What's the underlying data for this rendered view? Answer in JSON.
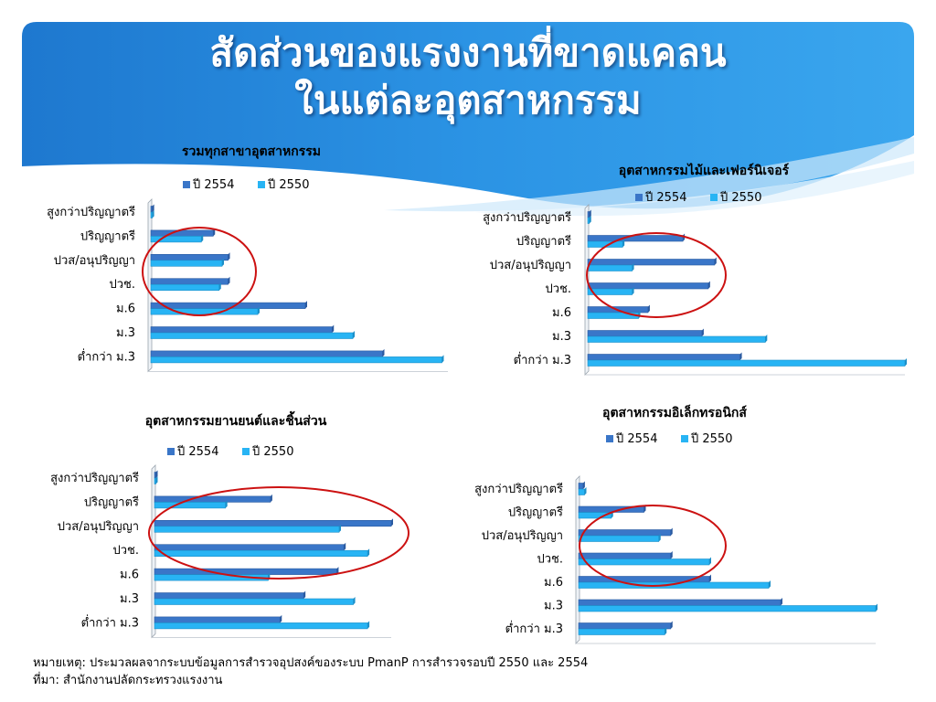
{
  "slide": {
    "title_line1": "สัดส่วนของแรงงานที่ขาดแคลน",
    "title_line2": "ในแต่ละอุตสาหกรรม",
    "note": "หมายเหตุ: ประมวลผลจากระบบข้อมูลการสำรวจอุปสงค์ของระบบ PmanP การสำรวจรอบปี 2550 และ 2554",
    "source": "ที่มา: สำนักงานปลัดกระทรวงแรงงาน"
  },
  "colors": {
    "series_2554": "#3a76c8",
    "series_2550": "#28b4f4",
    "highlight_ellipse": "#cc1111",
    "header_blue": "#2b8fe0"
  },
  "chart_data": [
    {
      "type": "bar",
      "orientation": "horizontal",
      "title": "รวมทุกสาขาอุตสาหกรรม",
      "categories": [
        "สูงกว่าปริญญาตรี",
        "ปริญญาตรี",
        "ปวส/อนุปริญญา",
        "ปวช.",
        "ม.6",
        "ม.3",
        "ต่ำกว่า ม.3"
      ],
      "series": [
        {
          "name": "ปี 2554",
          "values": [
            0.5,
            21,
            26,
            26,
            52,
            61,
            78
          ]
        },
        {
          "name": "ปี 2550",
          "values": [
            0.5,
            17,
            24,
            23,
            36,
            68,
            98
          ]
        }
      ],
      "legend": "top",
      "grid": false
    },
    {
      "type": "bar",
      "orientation": "horizontal",
      "title": "อุตสาหกรรมไม้และเฟอร์นิเจอร์",
      "categories": [
        "สูงกว่าปริญญาตรี",
        "ปริญญาตรี",
        "ปวส/อนุปริญญา",
        "ปวช.",
        "ม.6",
        "ม.3",
        "ต่ำกว่า ม.3"
      ],
      "series": [
        {
          "name": "ปี 2554",
          "values": [
            0.5,
            30,
            40,
            38,
            19,
            36,
            48
          ]
        },
        {
          "name": "ปี 2550",
          "values": [
            0.5,
            11,
            14,
            14,
            16,
            56,
            100
          ]
        }
      ],
      "legend": "top",
      "grid": false
    },
    {
      "type": "bar",
      "orientation": "horizontal",
      "title": "อุตสาหกรรมยานยนต์และชิ้นส่วน",
      "categories": [
        "สูงกว่าปริญญาตรี",
        "ปริญญาตรี",
        "ปวส/อนุปริญญา",
        "ปวช.",
        "ม.6",
        "ม.3",
        "ต่ำกว่า ม.3"
      ],
      "series": [
        {
          "name": "ปี 2554",
          "values": [
            0.5,
            49,
            100,
            80,
            77,
            63,
            53
          ]
        },
        {
          "name": "ปี 2550",
          "values": [
            0.5,
            30,
            78,
            90,
            48,
            84,
            90
          ]
        }
      ],
      "legend": "top",
      "grid": false
    },
    {
      "type": "bar",
      "orientation": "horizontal",
      "title": "อุตสาหกรรมอิเล็กทรอนิกส์",
      "categories": [
        "สูงกว่าปริญญาตรี",
        "ปริญญาตรี",
        "ปวส/อนุปริญญา",
        "ปวช.",
        "ม.6",
        "ม.3",
        "ต่ำกว่า ม.3"
      ],
      "series": [
        {
          "name": "ปี 2554",
          "values": [
            1.5,
            22,
            31,
            31,
            44,
            68,
            31
          ]
        },
        {
          "name": "ปี 2550",
          "values": [
            2,
            11,
            27,
            44,
            64,
            100,
            29
          ]
        }
      ],
      "legend": "top",
      "grid": false
    }
  ]
}
